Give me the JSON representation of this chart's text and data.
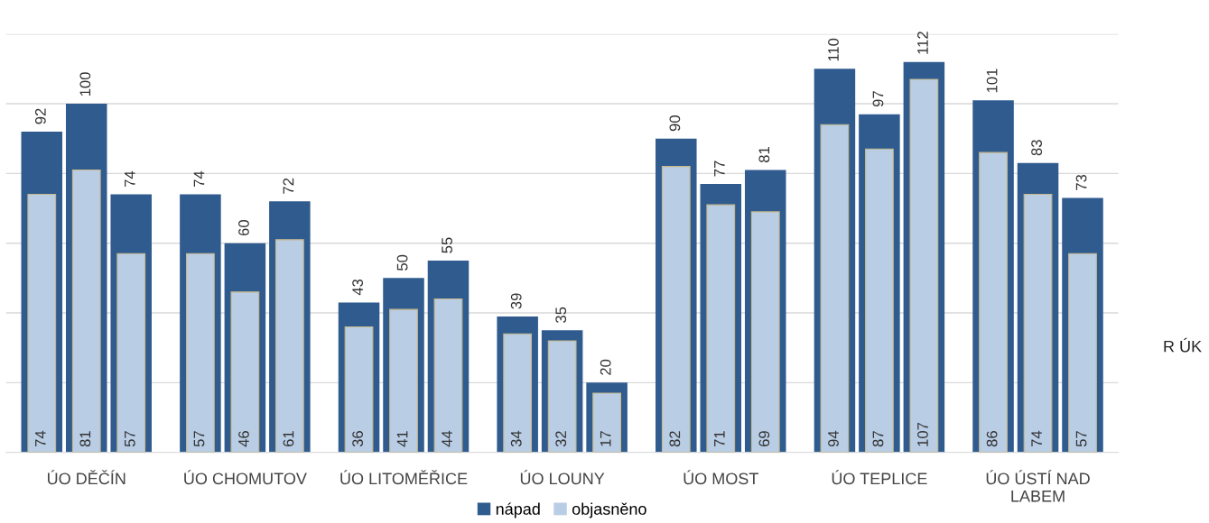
{
  "chart_data": {
    "type": "bar",
    "categories": [
      null,
      "ÚO DĚČÍN",
      null,
      null,
      "ÚO CHOMUTOV",
      null,
      null,
      "ÚO LITOMĚŘICE",
      null,
      null,
      "ÚO LOUNY",
      null,
      null,
      "ÚO MOST",
      null,
      null,
      "ÚO TEPLICE",
      null,
      null,
      "ÚO ÚSTÍ NAD\nLABEM",
      null
    ],
    "series": [
      {
        "name": "nápad",
        "color": "#2f5b8f",
        "values": [
          92,
          100,
          74,
          74,
          60,
          72,
          43,
          50,
          55,
          39,
          35,
          20,
          90,
          77,
          81,
          110,
          97,
          112,
          101,
          83,
          73
        ]
      },
      {
        "name": "objasněno",
        "color": "#b9cde5",
        "values": [
          74,
          81,
          57,
          57,
          46,
          61,
          36,
          41,
          44,
          34,
          32,
          17,
          82,
          71,
          69,
          94,
          87,
          107,
          86,
          74,
          57
        ]
      }
    ],
    "ylim": [
      0,
      120
    ],
    "yticks": [
      {
        "value": 0,
        "label": null
      },
      {
        "value": 20,
        "label": null
      },
      {
        "value": 40,
        "label": null
      },
      {
        "value": 60,
        "label": null
      },
      {
        "value": 80,
        "label": null
      },
      {
        "value": 100,
        "label": null
      },
      {
        "value": 120,
        "label": null
      }
    ],
    "grid": "y",
    "legend": "bottom",
    "data_labels": true,
    "annotations": [
      "R ÚK"
    ]
  }
}
